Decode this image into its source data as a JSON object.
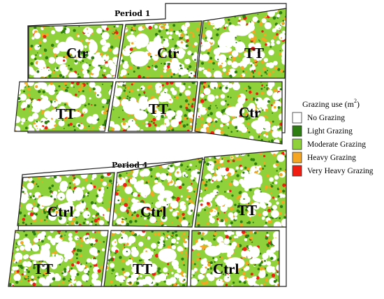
{
  "legend": {
    "title": "Grazing use (m",
    "title_sup": "2",
    "title_end": ")",
    "items": [
      {
        "label": "No Grazing",
        "color": "#ffffff"
      },
      {
        "label": "Light Grazing",
        "color": "#2e7d12"
      },
      {
        "label": "Moderate Grazing",
        "color": "#8fd13a"
      },
      {
        "label": "Heavy Grazing",
        "color": "#f5a623"
      },
      {
        "label": "Very Heavy Grazing",
        "color": "#f01e12"
      }
    ]
  },
  "panels": [
    {
      "title": "Period 1",
      "plots": [
        {
          "label": "Ctr",
          "treatment": "control"
        },
        {
          "label": "Ctr",
          "treatment": "control"
        },
        {
          "label": "TT",
          "treatment": "treatment"
        },
        {
          "label": "TT",
          "treatment": "treatment"
        },
        {
          "label": "TT",
          "treatment": "treatment"
        },
        {
          "label": "Ctr",
          "treatment": "control"
        }
      ]
    },
    {
      "title": "Period 4",
      "plots": [
        {
          "label": "Ctrl",
          "treatment": "control"
        },
        {
          "label": "Ctrl",
          "treatment": "control"
        },
        {
          "label": "TT",
          "treatment": "treatment"
        },
        {
          "label": "TT",
          "treatment": "treatment"
        },
        {
          "label": "TT",
          "treatment": "treatment"
        },
        {
          "label": "Ctrl",
          "treatment": "control"
        }
      ]
    }
  ]
}
